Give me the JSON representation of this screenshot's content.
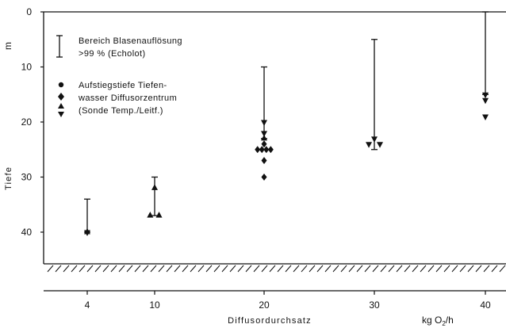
{
  "chart_data": {
    "type": "scatter",
    "x_ticks": [
      4,
      10,
      20,
      30,
      40
    ],
    "y_ticks": [
      0,
      10,
      20,
      30,
      40
    ],
    "y_ticks_top_label": "0",
    "ylim": [
      0,
      46
    ],
    "xlabel": "Diffusordurchsatz",
    "x_unit": "kg O2/h",
    "ylabel": "Tiefe",
    "y_unit": "m",
    "y_inverted": true,
    "legend": {
      "range_line_1": "Bereich Blasenauflösung",
      "range_line_2": ">99 % (Echolot)",
      "markers_line_1": "Aufstiegstiefe Tiefen-",
      "markers_line_2": "wasser Diffusorzentrum",
      "markers_line_3": "(Sonde Temp./Leitf.)"
    },
    "dissolution_ranges": [
      {
        "x": 4,
        "y_top": 34,
        "y_bottom": 40
      },
      {
        "x": 10,
        "y_top": 30,
        "y_bottom": 37
      },
      {
        "x": 20,
        "y_top": 10,
        "y_bottom": 23
      },
      {
        "x": 30,
        "y_top": 5,
        "y_bottom": 25
      },
      {
        "x": 40,
        "y_top": 0,
        "y_bottom": 15
      }
    ],
    "points": [
      {
        "x": 4,
        "y": 40,
        "marker": "triangle-up"
      },
      {
        "x": 4,
        "y": 40,
        "marker": "triangle-down"
      },
      {
        "x": 10,
        "y": 32,
        "marker": "triangle-up"
      },
      {
        "x": 9.6,
        "y": 37,
        "marker": "triangle-up"
      },
      {
        "x": 10.4,
        "y": 37,
        "marker": "triangle-up"
      },
      {
        "x": 20,
        "y": 20,
        "marker": "triangle-down"
      },
      {
        "x": 20,
        "y": 22,
        "marker": "triangle-down"
      },
      {
        "x": 20,
        "y": 23,
        "marker": "triangle-up"
      },
      {
        "x": 20,
        "y": 24,
        "marker": "diamond"
      },
      {
        "x": 19.4,
        "y": 25,
        "marker": "diamond"
      },
      {
        "x": 19.8,
        "y": 25,
        "marker": "diamond"
      },
      {
        "x": 20.2,
        "y": 25,
        "marker": "diamond"
      },
      {
        "x": 20.6,
        "y": 25,
        "marker": "diamond"
      },
      {
        "x": 20,
        "y": 27,
        "marker": "diamond"
      },
      {
        "x": 20,
        "y": 30,
        "marker": "diamond"
      },
      {
        "x": 30,
        "y": 23,
        "marker": "triangle-down"
      },
      {
        "x": 29.5,
        "y": 24,
        "marker": "triangle-down"
      },
      {
        "x": 30.5,
        "y": 24,
        "marker": "triangle-down"
      },
      {
        "x": 40,
        "y": 15,
        "marker": "triangle-down"
      },
      {
        "x": 40,
        "y": 16,
        "marker": "triangle-down"
      },
      {
        "x": 40,
        "y": 19,
        "marker": "triangle-down"
      }
    ],
    "grid": false,
    "legend_placement": "top-left",
    "colors": {
      "ink": "#111111",
      "background": "#ffffff"
    }
  }
}
